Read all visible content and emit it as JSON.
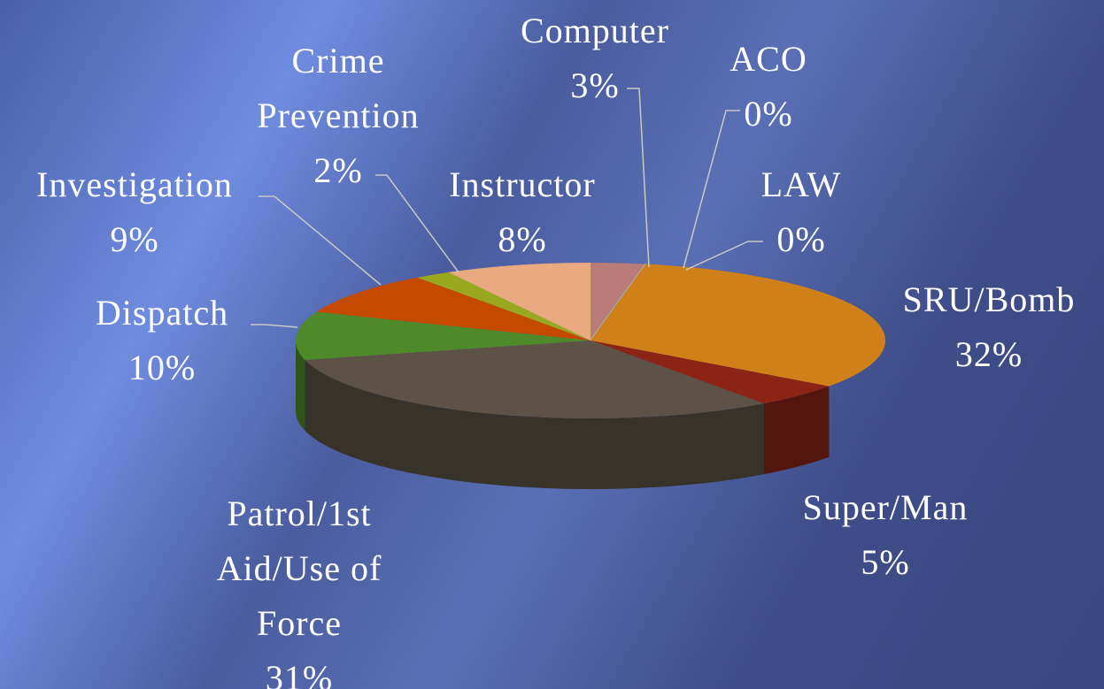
{
  "chart_data": {
    "type": "pie",
    "categories": [
      "Computer",
      "ACO",
      "LAW",
      "SRU/Bomb",
      "Super/Man",
      "Patrol/1st Aid/Use of Force",
      "Dispatch",
      "Investigation",
      "Crime Prevention",
      "Instructor"
    ],
    "values": [
      3,
      0,
      0,
      32,
      5,
      31,
      10,
      9,
      2,
      8
    ],
    "value_labels": [
      "3%",
      "0%",
      "0%",
      "32%",
      "5%",
      "31%",
      "10%",
      "9%",
      "2%",
      "8%"
    ],
    "colors": [
      "#b97c78",
      "#8fa8a0",
      "#9fb3b8",
      "#d08018",
      "#8b2414",
      "#5c5346",
      "#4f8a2a",
      "#c44a00",
      "#9aa820",
      "#eaaa80"
    ]
  }
}
